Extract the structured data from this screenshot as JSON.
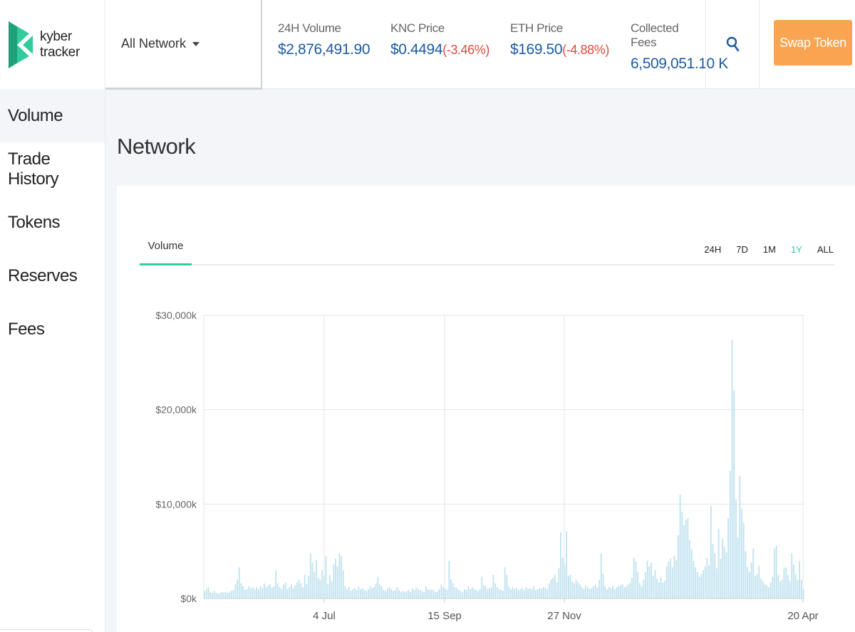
{
  "app": {
    "logo_line1": "kyber",
    "logo_line2": "tracker",
    "brand_color": "#31cb9e"
  },
  "sidebar": {
    "items": [
      {
        "label": "Volume",
        "active": true
      },
      {
        "label": "Trade History"
      },
      {
        "label": "Tokens"
      },
      {
        "label": "Reserves"
      },
      {
        "label": "Fees"
      }
    ]
  },
  "header": {
    "network_select": "All Network",
    "stats": {
      "volume_label": "24H Volume",
      "volume_value": "$2,876,491.90",
      "knc_label": "KNC Price",
      "knc_value": "$0.4494",
      "knc_change": "(-3.46%)",
      "eth_label": "ETH Price",
      "eth_value": "$169.50",
      "eth_change": "(-4.88%)",
      "fees_label": "Collected Fees",
      "fees_value": "6,509,051.10 K"
    },
    "search_icon": "search-icon",
    "swap_label": "Swap Token",
    "swap_color": "#f9a450"
  },
  "main": {
    "title": "Network",
    "tab_label": "Volume",
    "ranges": [
      "24H",
      "7D",
      "1M",
      "1Y",
      "ALL"
    ],
    "active_range": "1Y"
  },
  "chart_data": {
    "type": "bar",
    "ylim": [
      0,
      30000
    ],
    "yticks": [
      0,
      10000,
      20000,
      30000
    ],
    "ytick_labels": [
      "$0k",
      "$10,000k",
      "$20,000k",
      "$30,000k"
    ],
    "xtick_labels": [
      "4 Jul",
      "15 Sep",
      "27 Nov",
      "20 Apr"
    ],
    "grid": true,
    "bar_color": "#bfe2ef",
    "series": [
      {
        "values": [
          800,
          1000,
          1200,
          700,
          600,
          800,
          600,
          500,
          600,
          700,
          650,
          700,
          600,
          700,
          800,
          900,
          1500,
          2000,
          3300,
          1600,
          1300,
          900,
          1000,
          1300,
          1100,
          1200,
          1000,
          1200,
          1000,
          1300,
          1100,
          1600,
          1200,
          1400,
          1500,
          1200,
          1300,
          3000,
          1600,
          1200,
          1000,
          1500,
          1700,
          1000,
          1200,
          1500,
          1100,
          1400,
          1700,
          2000,
          1600,
          1200,
          2500,
          1500,
          2400,
          4800,
          3800,
          2800,
          4100,
          2200,
          2000,
          3000,
          2400,
          4500,
          1500,
          2500,
          1800,
          3600,
          4200,
          3400,
          4800,
          4500,
          3000,
          1300,
          1000,
          1200,
          800,
          1000,
          1100,
          900,
          1300,
          1000,
          1100,
          900,
          800,
          1000,
          1300,
          1100,
          1200,
          1600,
          2300,
          1500,
          1300,
          900,
          800,
          1000,
          1200,
          1000,
          800,
          900,
          1200,
          900,
          700,
          800,
          700,
          800,
          900,
          700,
          1100,
          900,
          1200,
          1000,
          900,
          800,
          700,
          1300,
          1000,
          900,
          1000,
          900,
          700,
          800,
          1000,
          1500,
          1200,
          1000,
          900,
          4000,
          2000,
          1600,
          1200,
          1100,
          900,
          800,
          700,
          1000,
          900,
          1300,
          1000,
          1200,
          1000,
          900,
          800,
          1000,
          2300,
          1400,
          1300,
          1000,
          1100,
          1200,
          2500,
          1600,
          1200,
          1000,
          900,
          800,
          3300,
          2500,
          1300,
          1000,
          1200,
          1000,
          1100,
          900,
          1000,
          1100,
          900,
          1200,
          1000,
          1100,
          1000,
          1300,
          900,
          1000,
          1100,
          1000,
          1200,
          1100,
          1000,
          1600,
          2000,
          2200,
          2500,
          1700,
          3200,
          7000,
          4300,
          3600,
          7100,
          2400,
          2500,
          1800,
          1600,
          2000,
          1700,
          1500,
          1200,
          1000,
          1400,
          1200,
          1000,
          1100,
          1300,
          1500,
          1200,
          2000,
          4800,
          2600,
          1300,
          1000,
          1200,
          1100,
          1300,
          1000,
          1200,
          1300,
          1400,
          1500,
          1200,
          1300,
          1500,
          1700,
          2200,
          4300,
          3900,
          2800,
          1600,
          1300,
          2000,
          2800,
          4000,
          3400,
          3800,
          2400,
          3000,
          2100,
          1700,
          2300,
          1700,
          1900,
          3400,
          3900,
          4200,
          3300,
          4500,
          4100,
          6700,
          11000,
          9200,
          7800,
          8300,
          8500,
          6200,
          5200,
          4000,
          3300,
          2800,
          2300,
          2600,
          3000,
          3400,
          4300,
          3500,
          9800,
          5800,
          4800,
          3200,
          7400,
          4200,
          6300,
          5500,
          4900,
          8500,
          13500,
          27400,
          22000,
          10500,
          6500,
          13000,
          9500,
          8000,
          5000,
          3300,
          2800,
          3800,
          5300,
          2400,
          2600,
          3500,
          2100,
          1800,
          1500,
          1400,
          1200,
          1700,
          2300,
          5300,
          5600,
          2500,
          1800,
          2000,
          3200,
          3300,
          2500,
          1900,
          4800,
          3600,
          2600,
          2000,
          4000,
          2000,
          1000
        ]
      }
    ]
  }
}
